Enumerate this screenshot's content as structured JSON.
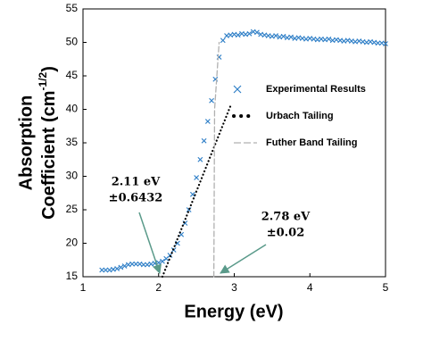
{
  "chart_data": {
    "type": "scatter",
    "xlabel": "Energy (eV)",
    "ylabel_lines": [
      "Absorption",
      "Coefficient (cm"
    ],
    "ylabel_sup": "-1/2",
    "ylabel_end": ")",
    "xlim": [
      1,
      5
    ],
    "xticks": [
      1,
      2,
      3,
      4,
      5
    ],
    "ylim": [
      15,
      55
    ],
    "yticks": [
      15,
      20,
      25,
      30,
      35,
      40,
      45,
      50,
      55
    ],
    "grid": false,
    "legend": "right",
    "series": [
      {
        "name": "Experimental Results",
        "color": "#2f7fc7",
        "style": "markers",
        "x": [
          1.25,
          1.3,
          1.35,
          1.4,
          1.45,
          1.5,
          1.55,
          1.6,
          1.65,
          1.7,
          1.75,
          1.8,
          1.85,
          1.9,
          1.95,
          2.0,
          2.05,
          2.1,
          2.15,
          2.2,
          2.25,
          2.3,
          2.35,
          2.4,
          2.45,
          2.5,
          2.55,
          2.6,
          2.65,
          2.7,
          2.75,
          2.8,
          2.85,
          2.9,
          2.95,
          3.0,
          3.05,
          3.1,
          3.15,
          3.2,
          3.25,
          3.3,
          3.35,
          3.4,
          3.45,
          3.5,
          3.55,
          3.6,
          3.65,
          3.7,
          3.75,
          3.8,
          3.85,
          3.9,
          3.95,
          4.0,
          4.05,
          4.1,
          4.15,
          4.2,
          4.25,
          4.3,
          4.35,
          4.4,
          4.45,
          4.5,
          4.55,
          4.6,
          4.65,
          4.7,
          4.75,
          4.8,
          4.85,
          4.9,
          4.95,
          5.0
        ],
        "values": [
          16,
          16,
          16,
          16.1,
          16.2,
          16.4,
          16.6,
          16.8,
          16.9,
          16.9,
          16.9,
          16.8,
          16.8,
          16.9,
          17,
          17.1,
          17.3,
          17.7,
          18.2,
          19,
          20,
          21.3,
          23,
          25,
          27.3,
          29.8,
          32.5,
          35.3,
          38.2,
          41.3,
          44.5,
          47.8,
          50.3,
          51,
          51.1,
          51.2,
          51.1,
          51.3,
          51.2,
          51.3,
          51.6,
          51.5,
          51.2,
          51.1,
          51,
          50.9,
          51,
          50.8,
          50.9,
          50.7,
          50.8,
          50.6,
          50.7,
          50.6,
          50.5,
          50.6,
          50.5,
          50.4,
          50.5,
          50.4,
          50.5,
          50.3,
          50.4,
          50.3,
          50.2,
          50.3,
          50.2,
          50.1,
          50.2,
          50.1,
          50,
          50.1,
          50,
          49.9,
          49.9,
          49.8
        ]
      },
      {
        "name": "Urbach Tailing",
        "color": "#000000",
        "style": "dotted",
        "x": [
          2.05,
          2.95
        ],
        "values": [
          15,
          40.5
        ]
      },
      {
        "name": "Futher Band Tailing",
        "color": "#b0b0b0",
        "style": "dashed",
        "x": [
          2.73,
          2.74,
          2.8
        ],
        "values": [
          15,
          40,
          50
        ]
      }
    ],
    "annotations": [
      {
        "lines": [
          "2.11 eV",
          "±0.6432"
        ]
      },
      {
        "lines": [
          "2.78 eV",
          "±0.02"
        ]
      }
    ]
  }
}
